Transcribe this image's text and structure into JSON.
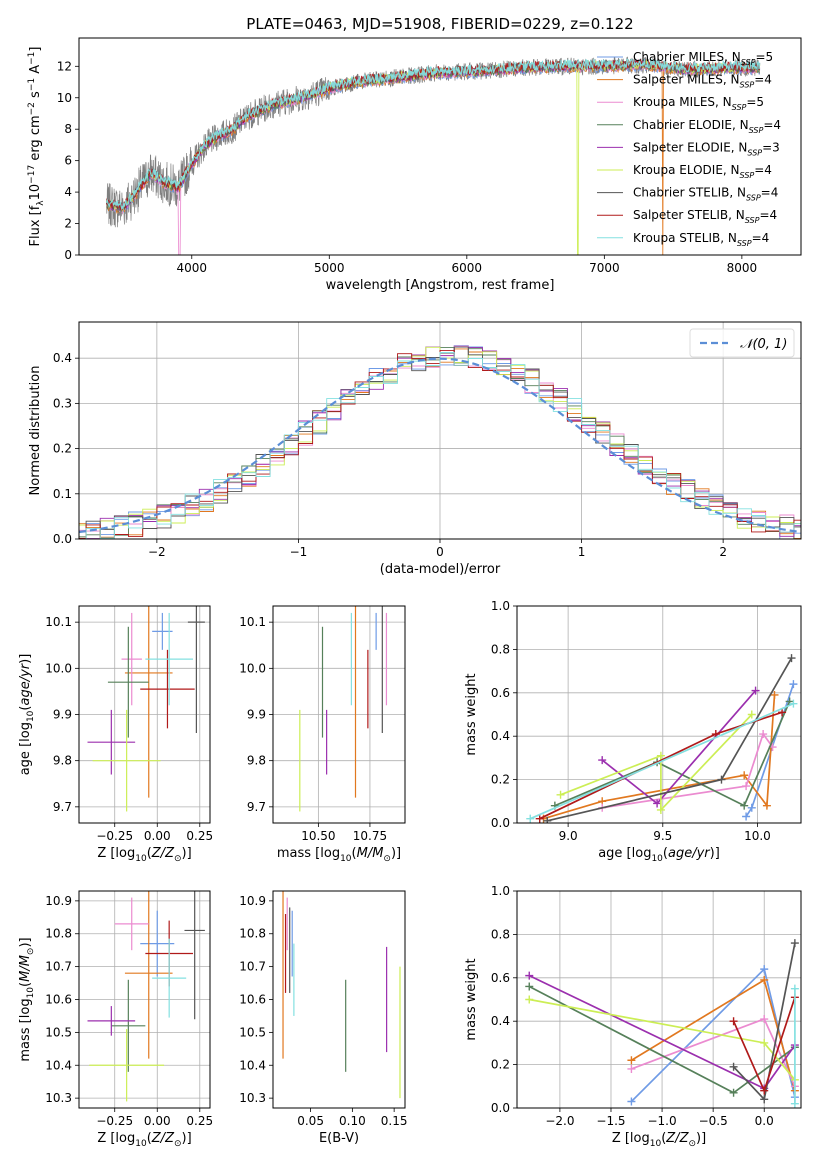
{
  "colors": [
    "#6f9be6",
    "#e1781f",
    "#eb8bd0",
    "#56805a",
    "#9b2fae",
    "#ccee55",
    "#555555",
    "#b01a1a",
    "#84e0e0"
  ],
  "model_labels": [
    "Chabrier MILES",
    "Salpeter MILES",
    "Kroupa MILES",
    "Chabrier ELODIE",
    "Salpeter ELODIE",
    "Kroupa ELODIE",
    "Chabrier STELIB",
    "Salpeter STELIB",
    "Kroupa STELIB"
  ],
  "nssp": [
    "5",
    "4",
    "5",
    "4",
    "3",
    "4",
    "4",
    "4",
    "4"
  ],
  "chart_data": [
    {
      "type": "line",
      "title": "PLATE=0463, MJD=51908, FIBERID=0229, z=0.122",
      "xlabel": "wavelength [Angstrom, rest frame]",
      "ylabel": "Flux [f_λ 10^-17 erg cm^-2 s^-1 A^-1]",
      "xlim": [
        3180,
        8430
      ],
      "ylim": [
        0,
        13.8
      ],
      "xticks": [
        4000,
        5000,
        6000,
        7000,
        8000
      ],
      "yticks": [
        0,
        2,
        4,
        6,
        8,
        10,
        12
      ],
      "legend": "upper right",
      "x_anchor": [
        3380,
        3500,
        3600,
        3700,
        3800,
        3900,
        4000,
        4100,
        4200,
        4300,
        4400,
        4600,
        4800,
        5000,
        5200,
        5500,
        5800,
        6100,
        6400,
        6700,
        7000,
        7300,
        7600,
        7900,
        8130
      ],
      "y_anchor": [
        3.2,
        3.0,
        4.0,
        5.2,
        4.6,
        4.3,
        5.8,
        7.0,
        7.6,
        8.0,
        8.8,
        9.6,
        10.0,
        10.6,
        11.0,
        11.3,
        11.6,
        11.7,
        11.9,
        12.0,
        12.0,
        12.1,
        11.8,
        11.9,
        11.9
      ],
      "series": [
        {
          "name": "Chabrier MILES, N_SSP=5"
        },
        {
          "name": "Salpeter MILES, N_SSP=4"
        },
        {
          "name": "Kroupa MILES, N_SSP=5"
        },
        {
          "name": "Chabrier ELODIE, N_SSP=4"
        },
        {
          "name": "Salpeter ELODIE, N_SSP=3"
        },
        {
          "name": "Kroupa ELODIE, N_SSP=4"
        },
        {
          "name": "Chabrier STELIB, N_SSP=4"
        },
        {
          "name": "Salpeter STELIB, N_SSP=4"
        },
        {
          "name": "Kroupa STELIB, N_SSP=4"
        }
      ]
    },
    {
      "type": "histogram",
      "xlabel": "(data-model)/error",
      "ylabel": "Normed distribution",
      "xlim": [
        -2.55,
        2.55
      ],
      "ylim": [
        0,
        0.48
      ],
      "xticks": [
        -2,
        -1,
        0,
        1,
        2
      ],
      "yticks": [
        0.0,
        0.1,
        0.2,
        0.3,
        0.4
      ],
      "grid": true,
      "legend": "upper right",
      "reference_label": "N(0,1)",
      "bin_width": 0.1,
      "bin_start": -2.6
    },
    {
      "type": "scatter",
      "xlabel": "Z [log10(Z/Z_sun)]",
      "ylabel": "age [log10(age/yr)]",
      "xlim": [
        -0.46,
        0.31
      ],
      "ylim": [
        9.665,
        10.135
      ],
      "xticks": [
        -0.25,
        0.0,
        0.25
      ],
      "yticks": [
        9.7,
        9.8,
        9.9,
        10.0,
        10.1
      ],
      "grid": true,
      "points": [
        {
          "x": 0.03,
          "y": 10.08,
          "xerr": 0.06,
          "yerr": 0.04
        },
        {
          "x": -0.05,
          "y": 9.99,
          "xerr": 0.14,
          "yerr": 0.27
        },
        {
          "x": -0.15,
          "y": 10.02,
          "xerr": 0.06,
          "yerr": 0.1
        },
        {
          "x": -0.17,
          "y": 9.97,
          "xerr": 0.12,
          "yerr": 0.12
        },
        {
          "x": -0.27,
          "y": 9.84,
          "xerr": 0.14,
          "yerr": 0.07
        },
        {
          "x": -0.18,
          "y": 9.8,
          "xerr": 0.2,
          "yerr": 0.11
        },
        {
          "x": 0.23,
          "y": 10.1,
          "xerr": 0.05,
          "yerr": 0.24
        },
        {
          "x": 0.06,
          "y": 9.955,
          "xerr": 0.16,
          "yerr": 0.085
        },
        {
          "x": 0.07,
          "y": 10.02,
          "xerr": 0.14,
          "yerr": 0.1
        }
      ]
    },
    {
      "type": "scatter",
      "xlabel": "mass [log10(M/M_sun)]",
      "ylabel": "",
      "xlim": [
        10.28,
        10.92
      ],
      "ylim": [
        9.665,
        10.135
      ],
      "xticks": [
        10.5,
        10.75
      ],
      "yticks": [
        9.7,
        9.8,
        9.9,
        10.0,
        10.1
      ],
      "grid": true,
      "points": [
        {
          "x": 10.78,
          "y": 10.08,
          "yerr": 0.04
        },
        {
          "x": 10.68,
          "y": 9.99,
          "yerr": 0.27
        },
        {
          "x": 10.83,
          "y": 10.02,
          "yerr": 0.1
        },
        {
          "x": 10.52,
          "y": 9.97,
          "yerr": 0.12
        },
        {
          "x": 10.54,
          "y": 9.84,
          "yerr": 0.07
        },
        {
          "x": 10.41,
          "y": 9.8,
          "yerr": 0.11
        },
        {
          "x": 10.81,
          "y": 10.1,
          "yerr": 0.24
        },
        {
          "x": 10.74,
          "y": 9.955,
          "yerr": 0.085
        },
        {
          "x": 10.66,
          "y": 10.02,
          "yerr": 0.1
        }
      ]
    },
    {
      "type": "line",
      "xlabel": "age [log10(age/yr)]",
      "ylabel": "mass weight",
      "xlim": [
        8.73,
        10.23
      ],
      "ylim": [
        0.0,
        1.0
      ],
      "xticks": [
        9.0,
        9.5,
        10.0
      ],
      "yticks": [
        0.0,
        0.2,
        0.4,
        0.6,
        0.8,
        1.0
      ],
      "grid": true,
      "series": [
        {
          "x": [
            9.94,
            9.97,
            10.19
          ],
          "y": [
            0.03,
            0.07,
            0.64
          ]
        },
        {
          "x": [
            8.87,
            9.18,
            9.93,
            10.05,
            10.09
          ],
          "y": [
            0.02,
            0.1,
            0.22,
            0.08,
            0.59
          ]
        },
        {
          "x": [
            9.18,
            9.94,
            10.03,
            10.08
          ],
          "y": [
            0.07,
            0.17,
            0.41,
            0.35
          ]
        },
        {
          "x": [
            8.93,
            9.47,
            9.93,
            10.17
          ],
          "y": [
            0.08,
            0.28,
            0.08,
            0.56
          ]
        },
        {
          "x": [
            9.18,
            9.47,
            9.99
          ],
          "y": [
            0.29,
            0.09,
            0.61
          ]
        },
        {
          "x": [
            8.96,
            9.49,
            9.49,
            9.97
          ],
          "y": [
            0.13,
            0.31,
            0.06,
            0.5
          ]
        },
        {
          "x": [
            8.89,
            9.81,
            10.18
          ],
          "y": [
            0.01,
            0.2,
            0.76
          ]
        },
        {
          "x": [
            8.85,
            9.78,
            10.13
          ],
          "y": [
            0.02,
            0.41,
            0.51
          ]
        },
        {
          "x": [
            8.8,
            10.19
          ],
          "y": [
            0.02,
            0.55
          ]
        }
      ]
    },
    {
      "type": "scatter",
      "xlabel": "Z [log10(Z/Z_sun)]",
      "ylabel": "mass [log10(M/M_sun)]",
      "xlim": [
        -0.46,
        0.31
      ],
      "ylim": [
        10.27,
        10.93
      ],
      "xticks": [
        -0.25,
        0.0,
        0.25
      ],
      "yticks": [
        10.3,
        10.4,
        10.5,
        10.6,
        10.7,
        10.8,
        10.9
      ],
      "grid": true,
      "points": [
        {
          "x": 0.0,
          "y": 10.77,
          "xerr": 0.1,
          "yerr": 0.1
        },
        {
          "x": -0.05,
          "y": 10.68,
          "xerr": 0.14,
          "yerr": 0.26
        },
        {
          "x": -0.15,
          "y": 10.83,
          "xerr": 0.1,
          "yerr": 0.08
        },
        {
          "x": -0.17,
          "y": 10.52,
          "xerr": 0.1,
          "yerr": 0.14
        },
        {
          "x": -0.27,
          "y": 10.535,
          "xerr": 0.14,
          "yerr": 0.045
        },
        {
          "x": -0.18,
          "y": 10.4,
          "xerr": 0.22,
          "yerr": 0.11
        },
        {
          "x": 0.22,
          "y": 10.81,
          "xerr": 0.06,
          "yerr": 0.27
        },
        {
          "x": 0.07,
          "y": 10.74,
          "xerr": 0.14,
          "yerr": 0.1
        },
        {
          "x": 0.07,
          "y": 10.665,
          "xerr": 0.1,
          "yerr": 0.12
        }
      ]
    },
    {
      "type": "scatter",
      "xlabel": "E(B-V)",
      "ylabel": "",
      "xlim": [
        0.005,
        0.163
      ],
      "ylim": [
        10.27,
        10.93
      ],
      "xticks": [
        0.05,
        0.1,
        0.15
      ],
      "yticks": [
        10.3,
        10.4,
        10.5,
        10.6,
        10.7,
        10.8,
        10.9
      ],
      "grid": false,
      "points": [
        {
          "x": 0.028,
          "y": 10.77,
          "yerr": 0.1
        },
        {
          "x": 0.017,
          "y": 10.68,
          "yerr": 0.26
        },
        {
          "x": 0.022,
          "y": 10.83,
          "yerr": 0.08
        },
        {
          "x": 0.092,
          "y": 10.52,
          "yerr": 0.14
        },
        {
          "x": 0.141,
          "y": 10.6,
          "yerr": 0.16
        },
        {
          "x": 0.157,
          "y": 10.5,
          "yerr": 0.2
        },
        {
          "x": 0.025,
          "y": 10.75,
          "yerr": 0.13
        },
        {
          "x": 0.02,
          "y": 10.74,
          "yerr": 0.12
        },
        {
          "x": 0.03,
          "y": 10.66,
          "yerr": 0.11
        }
      ]
    },
    {
      "type": "line",
      "xlabel": "Z [log10(Z/Z_sun)]",
      "ylabel": "mass weight",
      "xlim": [
        -2.42,
        0.36
      ],
      "ylim": [
        0.0,
        1.0
      ],
      "xticks": [
        -2.0,
        -1.5,
        -1.0,
        -0.5,
        0.0
      ],
      "yticks": [
        0.0,
        0.2,
        0.4,
        0.6,
        0.8,
        1.0
      ],
      "grid": true,
      "series": [
        {
          "x": [
            -1.3,
            0.0,
            0.3
          ],
          "y": [
            0.03,
            0.64,
            0.05
          ]
        },
        {
          "x": [
            -1.3,
            0.0,
            0.3
          ],
          "y": [
            0.22,
            0.59,
            0.08
          ]
        },
        {
          "x": [
            -1.3,
            0.0,
            0.3
          ],
          "y": [
            0.18,
            0.41,
            0.1
          ]
        },
        {
          "x": [
            -2.3,
            -0.3,
            0.3
          ],
          "y": [
            0.56,
            0.07,
            0.28
          ]
        },
        {
          "x": [
            -2.3,
            0.0,
            0.3
          ],
          "y": [
            0.61,
            0.09,
            0.29
          ]
        },
        {
          "x": [
            -2.3,
            0.0,
            0.3
          ],
          "y": [
            0.5,
            0.3,
            0.13
          ]
        },
        {
          "x": [
            -0.3,
            0.0,
            0.3
          ],
          "y": [
            0.19,
            0.04,
            0.76
          ]
        },
        {
          "x": [
            -0.3,
            0.0,
            0.3
          ],
          "y": [
            0.4,
            0.08,
            0.51
          ]
        },
        {
          "x": [
            0.3,
            0.3
          ],
          "y": [
            0.55,
            0.02
          ]
        }
      ]
    }
  ]
}
